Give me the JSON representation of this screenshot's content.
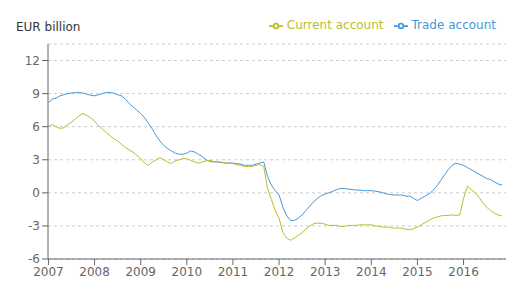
{
  "chart_data": {
    "type": "line",
    "y_label": "EUR billion",
    "x": [
      2007.0,
      2007.083,
      2007.167,
      2007.25,
      2007.333,
      2007.417,
      2007.5,
      2007.583,
      2007.667,
      2007.75,
      2007.833,
      2007.917,
      2008.0,
      2008.083,
      2008.167,
      2008.25,
      2008.333,
      2008.417,
      2008.5,
      2008.583,
      2008.667,
      2008.75,
      2008.833,
      2008.917,
      2009.0,
      2009.083,
      2009.167,
      2009.25,
      2009.333,
      2009.417,
      2009.5,
      2009.583,
      2009.667,
      2009.75,
      2009.833,
      2009.917,
      2010.0,
      2010.083,
      2010.167,
      2010.25,
      2010.333,
      2010.417,
      2010.5,
      2010.583,
      2010.667,
      2010.75,
      2010.833,
      2010.917,
      2011.0,
      2011.083,
      2011.167,
      2011.25,
      2011.333,
      2011.417,
      2011.5,
      2011.583,
      2011.667,
      2011.75,
      2011.833,
      2011.917,
      2012.0,
      2012.083,
      2012.167,
      2012.25,
      2012.333,
      2012.417,
      2012.5,
      2012.583,
      2012.667,
      2012.75,
      2012.833,
      2012.917,
      2013.0,
      2013.083,
      2013.167,
      2013.25,
      2013.333,
      2013.417,
      2013.5,
      2013.583,
      2013.667,
      2013.75,
      2013.833,
      2013.917,
      2014.0,
      2014.083,
      2014.167,
      2014.25,
      2014.333,
      2014.417,
      2014.5,
      2014.583,
      2014.667,
      2014.75,
      2014.833,
      2014.917,
      2015.0,
      2015.083,
      2015.167,
      2015.25,
      2015.333,
      2015.417,
      2015.5,
      2015.583,
      2015.667,
      2015.75,
      2015.833,
      2015.917,
      2016.0,
      2016.083,
      2016.167,
      2016.25,
      2016.333,
      2016.417,
      2016.5,
      2016.583,
      2016.667,
      2016.75,
      2016.833
    ],
    "series": [
      {
        "name": "Trade account",
        "color": "#4897D8",
        "values": [
          8.2,
          8.5,
          8.6,
          8.8,
          8.9,
          9.0,
          9.05,
          9.1,
          9.1,
          9.05,
          8.95,
          8.85,
          8.8,
          8.9,
          9.0,
          9.1,
          9.1,
          9.05,
          8.9,
          8.8,
          8.5,
          8.1,
          7.8,
          7.5,
          7.2,
          6.8,
          6.3,
          5.8,
          5.2,
          4.7,
          4.3,
          4.0,
          3.8,
          3.6,
          3.5,
          3.5,
          3.6,
          3.8,
          3.7,
          3.5,
          3.3,
          3.0,
          2.85,
          2.8,
          2.8,
          2.75,
          2.7,
          2.7,
          2.7,
          2.65,
          2.6,
          2.5,
          2.5,
          2.5,
          2.6,
          2.7,
          2.8,
          1.5,
          0.7,
          0.2,
          -0.2,
          -1.3,
          -2.1,
          -2.5,
          -2.5,
          -2.3,
          -2.0,
          -1.6,
          -1.2,
          -0.8,
          -0.5,
          -0.25,
          -0.1,
          0.0,
          0.15,
          0.3,
          0.4,
          0.4,
          0.35,
          0.3,
          0.25,
          0.25,
          0.2,
          0.2,
          0.2,
          0.15,
          0.1,
          0.0,
          -0.1,
          -0.15,
          -0.2,
          -0.2,
          -0.2,
          -0.3,
          -0.3,
          -0.5,
          -0.7,
          -0.5,
          -0.3,
          -0.1,
          0.2,
          0.6,
          1.1,
          1.6,
          2.1,
          2.5,
          2.7,
          2.6,
          2.5,
          2.3,
          2.1,
          1.9,
          1.7,
          1.5,
          1.3,
          1.2,
          1.0,
          0.8,
          0.7
        ]
      },
      {
        "name": "Current account",
        "color": "#BBBE2A",
        "values": [
          6.0,
          6.2,
          6.0,
          5.85,
          5.9,
          6.2,
          6.4,
          6.7,
          7.0,
          7.2,
          7.0,
          6.8,
          6.5,
          6.1,
          5.8,
          5.5,
          5.2,
          4.9,
          4.7,
          4.4,
          4.1,
          3.9,
          3.7,
          3.4,
          3.1,
          2.7,
          2.5,
          2.8,
          3.0,
          3.2,
          3.0,
          2.8,
          2.65,
          2.9,
          3.0,
          3.1,
          3.1,
          2.95,
          2.8,
          2.7,
          2.8,
          2.9,
          2.95,
          2.85,
          2.8,
          2.8,
          2.7,
          2.7,
          2.65,
          2.55,
          2.5,
          2.4,
          2.4,
          2.4,
          2.5,
          2.55,
          2.4,
          0.4,
          -0.6,
          -1.6,
          -2.3,
          -3.6,
          -4.1,
          -4.3,
          -4.1,
          -3.85,
          -3.6,
          -3.3,
          -3.0,
          -2.8,
          -2.75,
          -2.75,
          -2.85,
          -2.95,
          -2.95,
          -2.95,
          -3.05,
          -3.05,
          -2.95,
          -2.95,
          -2.95,
          -2.9,
          -2.9,
          -2.9,
          -2.9,
          -3.0,
          -3.05,
          -3.1,
          -3.1,
          -3.15,
          -3.2,
          -3.2,
          -3.2,
          -3.3,
          -3.35,
          -3.25,
          -3.1,
          -2.9,
          -2.7,
          -2.5,
          -2.3,
          -2.2,
          -2.1,
          -2.05,
          -2.05,
          -2.0,
          -2.05,
          -2.0,
          -0.5,
          0.6,
          0.3,
          0.0,
          -0.4,
          -0.9,
          -1.3,
          -1.6,
          -1.85,
          -2.0,
          -2.1
        ]
      }
    ],
    "xlim": [
      2006.99,
      2016.92
    ],
    "xticks": [
      2007,
      2008,
      2009,
      2010,
      2011,
      2012,
      2013,
      2014,
      2015,
      2016
    ],
    "ylim": [
      -6,
      13.5
    ],
    "yticks": [
      -6,
      -3,
      0,
      3,
      6,
      9,
      12
    ],
    "grid": "y",
    "legend": "upper right"
  }
}
